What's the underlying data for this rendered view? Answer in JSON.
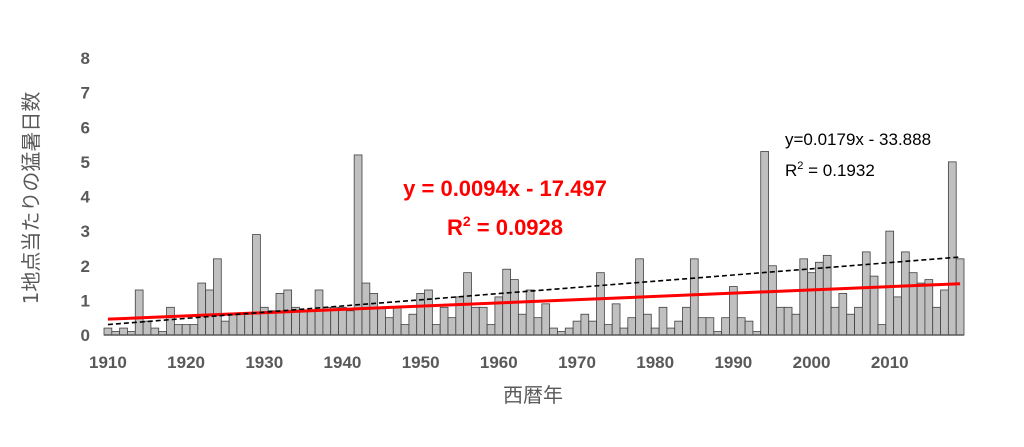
{
  "chart_data": {
    "type": "bar",
    "title": "",
    "xlabel": "西暦年",
    "ylabel": "1地点当たりの猛暑日数",
    "xlim": [
      1910,
      2019
    ],
    "ylim": [
      0,
      8
    ],
    "x_ticks": [
      "1910",
      "1920",
      "1930",
      "1940",
      "1950",
      "1960",
      "1970",
      "1980",
      "1990",
      "2000",
      "2010"
    ],
    "y_ticks": [
      "0",
      "1",
      "2",
      "3",
      "4",
      "5",
      "6",
      "7",
      "8"
    ],
    "grid": false,
    "legend": "none",
    "bar_color": "#c0c0c0",
    "bar_edge_color": "#404040",
    "series": [
      {
        "values": [
          {
            "year": 1910,
            "value": 0.2
          },
          {
            "year": 1911,
            "value": 0.1
          },
          {
            "year": 1912,
            "value": 0.2
          },
          {
            "year": 1913,
            "value": 0.1
          },
          {
            "year": 1914,
            "value": 1.3
          },
          {
            "year": 1915,
            "value": 0.4
          },
          {
            "year": 1916,
            "value": 0.2
          },
          {
            "year": 1917,
            "value": 0.1
          },
          {
            "year": 1918,
            "value": 0.8
          },
          {
            "year": 1919,
            "value": 0.3
          },
          {
            "year": 1920,
            "value": 0.3
          },
          {
            "year": 1921,
            "value": 0.3
          },
          {
            "year": 1922,
            "value": 1.5
          },
          {
            "year": 1923,
            "value": 1.3
          },
          {
            "year": 1924,
            "value": 2.2
          },
          {
            "year": 1925,
            "value": 0.4
          },
          {
            "year": 1926,
            "value": 0.6
          },
          {
            "year": 1927,
            "value": 0.6
          },
          {
            "year": 1928,
            "value": 0.6
          },
          {
            "year": 1929,
            "value": 2.9
          },
          {
            "year": 1930,
            "value": 0.8
          },
          {
            "year": 1931,
            "value": 0.7
          },
          {
            "year": 1932,
            "value": 1.2
          },
          {
            "year": 1933,
            "value": 1.3
          },
          {
            "year": 1934,
            "value": 0.8
          },
          {
            "year": 1935,
            "value": 0.7
          },
          {
            "year": 1936,
            "value": 0.7
          },
          {
            "year": 1937,
            "value": 1.3
          },
          {
            "year": 1938,
            "value": 0.8
          },
          {
            "year": 1939,
            "value": 0.8
          },
          {
            "year": 1940,
            "value": 0.8
          },
          {
            "year": 1941,
            "value": 0.7
          },
          {
            "year": 1942,
            "value": 5.2
          },
          {
            "year": 1943,
            "value": 1.5
          },
          {
            "year": 1944,
            "value": 1.2
          },
          {
            "year": 1945,
            "value": 0.8
          },
          {
            "year": 1946,
            "value": 0.5
          },
          {
            "year": 1947,
            "value": 0.8
          },
          {
            "year": 1948,
            "value": 0.3
          },
          {
            "year": 1949,
            "value": 0.6
          },
          {
            "year": 1950,
            "value": 1.2
          },
          {
            "year": 1951,
            "value": 1.3
          },
          {
            "year": 1952,
            "value": 0.3
          },
          {
            "year": 1953,
            "value": 0.8
          },
          {
            "year": 1954,
            "value": 0.5
          },
          {
            "year": 1955,
            "value": 1.1
          },
          {
            "year": 1956,
            "value": 1.8
          },
          {
            "year": 1957,
            "value": 0.8
          },
          {
            "year": 1958,
            "value": 0.8
          },
          {
            "year": 1959,
            "value": 0.3
          },
          {
            "year": 1960,
            "value": 1.1
          },
          {
            "year": 1961,
            "value": 1.9
          },
          {
            "year": 1962,
            "value": 1.6
          },
          {
            "year": 1963,
            "value": 0.6
          },
          {
            "year": 1964,
            "value": 1.3
          },
          {
            "year": 1965,
            "value": 0.5
          },
          {
            "year": 1966,
            "value": 0.9
          },
          {
            "year": 1967,
            "value": 0.2
          },
          {
            "year": 1968,
            "value": 0.1
          },
          {
            "year": 1969,
            "value": 0.2
          },
          {
            "year": 1970,
            "value": 0.4
          },
          {
            "year": 1971,
            "value": 0.6
          },
          {
            "year": 1972,
            "value": 0.4
          },
          {
            "year": 1973,
            "value": 1.8
          },
          {
            "year": 1974,
            "value": 0.3
          },
          {
            "year": 1975,
            "value": 0.9
          },
          {
            "year": 1976,
            "value": 0.2
          },
          {
            "year": 1977,
            "value": 0.5
          },
          {
            "year": 1978,
            "value": 2.2
          },
          {
            "year": 1979,
            "value": 0.6
          },
          {
            "year": 1980,
            "value": 0.2
          },
          {
            "year": 1981,
            "value": 0.8
          },
          {
            "year": 1982,
            "value": 0.2
          },
          {
            "year": 1983,
            "value": 0.4
          },
          {
            "year": 1984,
            "value": 0.8
          },
          {
            "year": 1985,
            "value": 2.2
          },
          {
            "year": 1986,
            "value": 0.5
          },
          {
            "year": 1987,
            "value": 0.5
          },
          {
            "year": 1988,
            "value": 0.1
          },
          {
            "year": 1989,
            "value": 0.5
          },
          {
            "year": 1990,
            "value": 1.4
          },
          {
            "year": 1991,
            "value": 0.5
          },
          {
            "year": 1992,
            "value": 0.4
          },
          {
            "year": 1993,
            "value": 0.1
          },
          {
            "year": 1994,
            "value": 5.3
          },
          {
            "year": 1995,
            "value": 2.0
          },
          {
            "year": 1996,
            "value": 0.8
          },
          {
            "year": 1997,
            "value": 0.8
          },
          {
            "year": 1998,
            "value": 0.6
          },
          {
            "year": 1999,
            "value": 2.2
          },
          {
            "year": 2000,
            "value": 1.8
          },
          {
            "year": 2001,
            "value": 2.1
          },
          {
            "year": 2002,
            "value": 2.3
          },
          {
            "year": 2003,
            "value": 0.8
          },
          {
            "year": 2004,
            "value": 1.2
          },
          {
            "year": 2005,
            "value": 0.6
          },
          {
            "year": 2006,
            "value": 0.8
          },
          {
            "year": 2007,
            "value": 2.4
          },
          {
            "year": 2008,
            "value": 1.7
          },
          {
            "year": 2009,
            "value": 0.3
          },
          {
            "year": 2010,
            "value": 3.0
          },
          {
            "year": 2011,
            "value": 1.1
          },
          {
            "year": 2012,
            "value": 2.4
          },
          {
            "year": 2013,
            "value": 1.8
          },
          {
            "year": 2014,
            "value": 1.5
          },
          {
            "year": 2015,
            "value": 1.6
          },
          {
            "year": 2016,
            "value": 0.8
          },
          {
            "year": 2017,
            "value": 1.3
          },
          {
            "year": 2018,
            "value": 5.0
          },
          {
            "year": 2019,
            "value": 2.2
          }
        ]
      }
    ],
    "trendlines": [
      {
        "style": "solid",
        "color": "#ff0000",
        "slope": 0.0094,
        "intercept": -17.497,
        "x_range": [
          1910,
          2019
        ],
        "equation_text": "y = 0.0094x - 17.497",
        "r2_prefix": "R",
        "r2_exponent": "2",
        "r2_suffix": " = 0.0928"
      },
      {
        "style": "dashed",
        "color": "#000000",
        "slope": 0.0179,
        "intercept": -33.888,
        "x_range": [
          1910,
          2019
        ],
        "equation_text": "y=0.0179x - 33.888",
        "r2_prefix": "R",
        "r2_exponent": "2",
        "r2_suffix": " = 0.1932"
      }
    ]
  }
}
